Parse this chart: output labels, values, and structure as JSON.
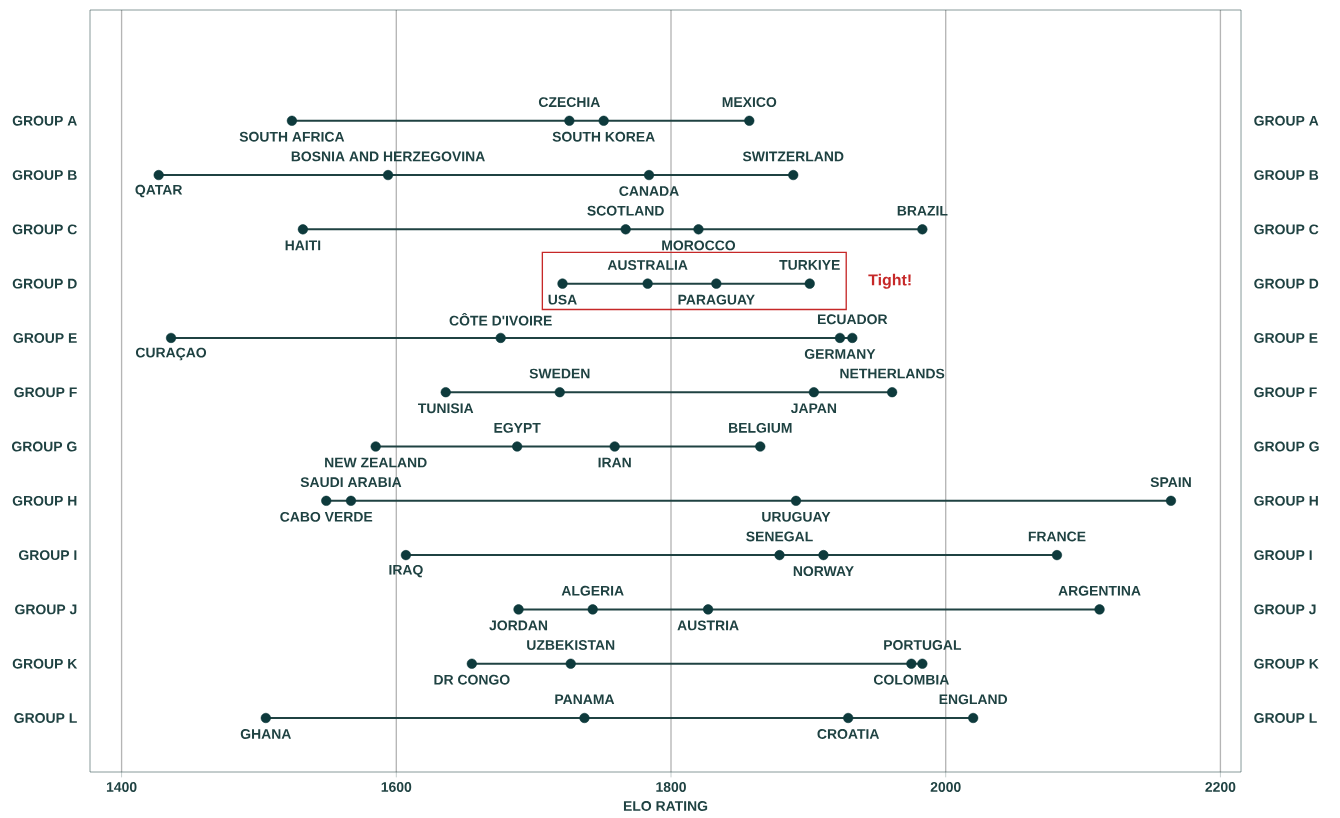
{
  "chart_data": {
    "type": "scatter",
    "orientation": "horizontal",
    "xlabel": "ELO RATING",
    "marker": "circle",
    "grid": "x",
    "categories": [
      "GROUP A",
      "GROUP B",
      "GROUP C",
      "GROUP D",
      "GROUP E",
      "GROUP F",
      "GROUP G",
      "GROUP H",
      "GROUP I",
      "GROUP J",
      "GROUP K",
      "GROUP L"
    ],
    "y2_categories": [
      "GROUP A",
      "GROUP B",
      "GROUP C",
      "GROUP D",
      "GROUP E",
      "GROUP F",
      "GROUP G",
      "GROUP H",
      "GROUP I",
      "GROUP J",
      "GROUP K",
      "GROUP L"
    ],
    "xlim": [
      1377,
      2215
    ],
    "xticks": [
      1400,
      1600,
      1800,
      2000,
      2200
    ],
    "series": [
      {
        "color": "#0e3a3c",
        "values": [
          1524,
          1427,
          1532,
          1721,
          1436,
          1636,
          1585,
          1549,
          1607,
          1689,
          1655,
          1505
        ],
        "value_labels": [
          "SOUTH AFRICA",
          "QATAR",
          "HAITI",
          "USA",
          "CURAÇAO",
          "TUNISIA",
          "NEW ZEALAND",
          "CABO VERDE",
          "IRAQ",
          "JORDAN",
          "DR CONGO",
          "GHANA"
        ]
      },
      {
        "color": "#0e3a3c",
        "values": [
          1726,
          1594,
          1767,
          1783,
          1676,
          1719,
          1688,
          1567,
          1879,
          1743,
          1727,
          1737
        ],
        "value_labels": [
          "CZECHIA",
          "BOSNIA AND HERZEGOVINA",
          "SCOTLAND",
          "AUSTRALIA",
          "CÔTE D'IVOIRE",
          "SWEDEN",
          "EGYPT",
          "SAUDI ARABIA",
          "SENEGAL",
          "ALGERIA",
          "UZBEKISTAN",
          "PANAMA"
        ]
      },
      {
        "color": "#0e3a3c",
        "values": [
          1751,
          1784,
          1820,
          1833,
          1923,
          1904,
          1759,
          1891,
          1911,
          1827,
          1975,
          1929
        ],
        "value_labels": [
          "SOUTH KOREA",
          "CANADA",
          "MOROCCO",
          "PARAGUAY",
          "GERMANY",
          "JAPAN",
          "IRAN",
          "URUGUAY",
          "NORWAY",
          "AUSTRIA",
          "COLOMBIA",
          "CROATIA"
        ]
      },
      {
        "color": "#0e3a3c",
        "values": [
          1857,
          1889,
          1983,
          1901,
          1932,
          1961,
          1865,
          2164,
          2081,
          2112,
          1983,
          2020
        ],
        "value_labels": [
          "MEXICO",
          "SWITZERLAND",
          "BRAZIL",
          "TURKIYE",
          "ECUADOR",
          "NETHERLANDS",
          "BELGIUM",
          "SPAIN",
          "FRANCE",
          "ARGENTINA",
          "PORTUGAL",
          "ENGLAND"
        ]
      }
    ],
    "annotations": [
      "Tight!"
    ]
  }
}
